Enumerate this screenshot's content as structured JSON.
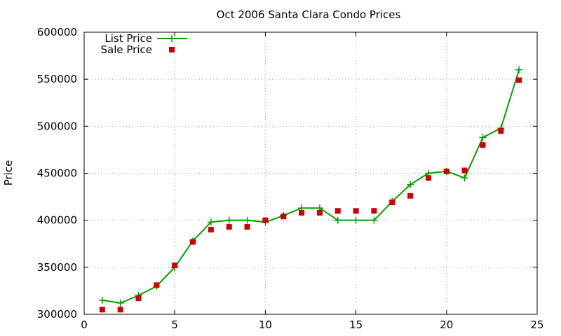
{
  "chart_data": {
    "type": "line",
    "title": "Oct 2006 Santa Clara Condo Prices",
    "xlabel": "",
    "ylabel": "Price",
    "xlim": [
      0,
      25
    ],
    "ylim": [
      300000,
      600000
    ],
    "xticks": [
      0,
      5,
      10,
      15,
      20,
      25
    ],
    "yticks": [
      300000,
      350000,
      400000,
      450000,
      500000,
      550000,
      600000
    ],
    "grid": true,
    "legend_position": "top-left",
    "series": [
      {
        "name": "List Price",
        "color": "#00a000",
        "style": "line-plus",
        "x": [
          1,
          2,
          3,
          4,
          5,
          6,
          7,
          8,
          9,
          10,
          11,
          12,
          13,
          14,
          15,
          16,
          17,
          18,
          19,
          20,
          21,
          22,
          23,
          24
        ],
        "y": [
          315000,
          312000,
          320000,
          330000,
          350000,
          378000,
          398000,
          400000,
          400000,
          398000,
          405000,
          413000,
          413000,
          400000,
          400000,
          400000,
          420000,
          438000,
          450000,
          452000,
          445000,
          488000,
          498000,
          560000
        ]
      },
      {
        "name": "Sale Price",
        "color": "#cc0000",
        "style": "square",
        "x": [
          1,
          2,
          3,
          4,
          5,
          6,
          7,
          8,
          9,
          10,
          11,
          12,
          13,
          14,
          15,
          16,
          17,
          18,
          19,
          20,
          21,
          22,
          23,
          24
        ],
        "y": [
          305000,
          305000,
          317000,
          331000,
          352000,
          377000,
          390000,
          393000,
          393000,
          400000,
          404000,
          408000,
          408000,
          410000,
          410000,
          410000,
          419000,
          426000,
          445000,
          452000,
          453000,
          480000,
          495000,
          549000
        ]
      }
    ]
  }
}
